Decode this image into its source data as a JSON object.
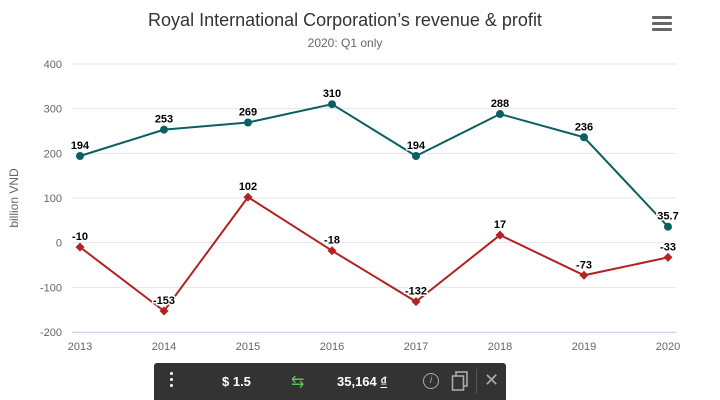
{
  "chart_data": {
    "type": "line",
    "title": "Royal International Corporation’s revenue & profit",
    "subtitle": "2020: Q1 only",
    "ylabel": "billion VND",
    "xlabel": "",
    "categories": [
      "2013",
      "2014",
      "2015",
      "2016",
      "2017",
      "2018",
      "2019",
      "2020"
    ],
    "ylim": [
      -200,
      400
    ],
    "yticks": [
      -200,
      -100,
      0,
      100,
      200,
      300,
      400
    ],
    "grid": true,
    "legend": "none",
    "series": [
      {
        "values": [
          194,
          253,
          269,
          310,
          194,
          288,
          236,
          35.7
        ],
        "labels": [
          "194",
          "253",
          "269",
          "310",
          "194",
          "288",
          "236",
          "35.7"
        ],
        "color": "#0b5f63",
        "marker": "circle"
      },
      {
        "values": [
          -10,
          -153,
          102,
          -18,
          -132,
          17,
          -73,
          -33
        ],
        "labels": [
          "-10",
          "-153",
          "102",
          "-18",
          "-132",
          "17",
          "-73",
          "-33"
        ],
        "color": "#b22222",
        "marker": "diamond"
      }
    ]
  },
  "converter": {
    "from_value": "$ 1.5",
    "to_value": "35,164",
    "to_currency": "₫",
    "swap_icon": "swap-arrows-icon",
    "info_icon": "info-icon",
    "copy_icon": "copy-icon",
    "close_icon": "close-icon",
    "menu_icon": "vertical-dots-icon"
  },
  "chart_menu_icon": "hamburger-icon"
}
